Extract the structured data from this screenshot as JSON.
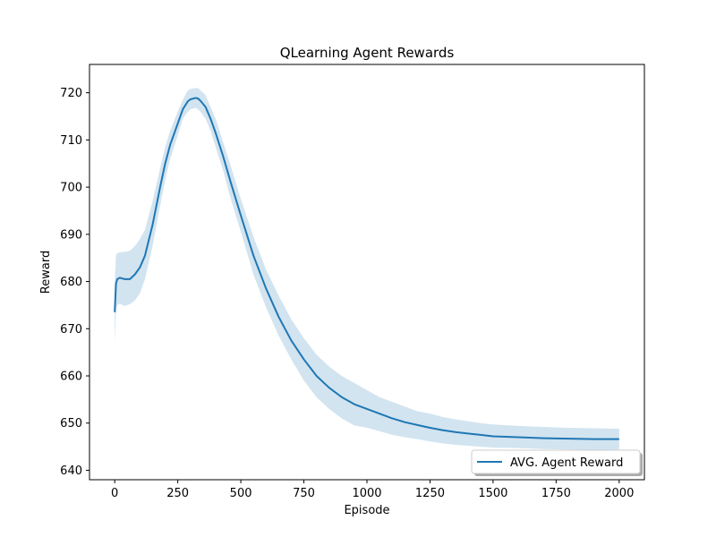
{
  "chart_data": {
    "type": "line",
    "title": "QLearning Agent Rewards",
    "xlabel": "Episode",
    "ylabel": "Reward",
    "xlim": [
      -100,
      2100
    ],
    "ylim": [
      638,
      726
    ],
    "xticks": [
      0,
      250,
      500,
      750,
      1000,
      1250,
      1500,
      1750,
      2000
    ],
    "yticks": [
      640,
      650,
      660,
      670,
      680,
      690,
      700,
      710,
      720
    ],
    "grid": false,
    "legend_position": "bottom-right",
    "colors": {
      "line": "#1f77b4",
      "band": "#1f77b4"
    },
    "series": [
      {
        "name": "AVG. Agent Reward",
        "x": [
          0,
          5,
          10,
          20,
          40,
          60,
          80,
          100,
          120,
          150,
          180,
          200,
          220,
          250,
          270,
          290,
          300,
          320,
          330,
          340,
          360,
          380,
          400,
          430,
          460,
          500,
          550,
          600,
          650,
          700,
          750,
          800,
          850,
          900,
          950,
          1000,
          1050,
          1100,
          1150,
          1200,
          1250,
          1300,
          1350,
          1400,
          1450,
          1500,
          1600,
          1700,
          1800,
          1900,
          2000
        ],
        "y": [
          673.5,
          679.5,
          680.5,
          680.8,
          680.5,
          680.5,
          681.5,
          683,
          685.5,
          692,
          700,
          705,
          709,
          713.5,
          716.5,
          718.2,
          718.6,
          718.9,
          718.8,
          718.3,
          717,
          714.5,
          711.5,
          706.5,
          701,
          694,
          685.5,
          678.5,
          672.5,
          667.5,
          663.5,
          660,
          657.5,
          655.5,
          654,
          653,
          652,
          651,
          650.2,
          649.6,
          649,
          648.5,
          648.1,
          647.8,
          647.5,
          647.2,
          647,
          646.8,
          646.7,
          646.6,
          646.6
        ],
        "band_upper": [
          680,
          685.5,
          686,
          686.2,
          686.3,
          686.5,
          687.5,
          689,
          691,
          697,
          704,
          708.5,
          712,
          716,
          718.5,
          720.5,
          720.8,
          721,
          721,
          720.5,
          719.5,
          717,
          714.5,
          709.5,
          704.5,
          697.5,
          689.5,
          682.5,
          677,
          672,
          668,
          664.5,
          662,
          660,
          658.5,
          657,
          655.5,
          654.5,
          653.5,
          652.5,
          652,
          651.3,
          650.8,
          650.4,
          650,
          649.7,
          649.4,
          649.2,
          649,
          648.9,
          648.8
        ],
        "band_lower": [
          667,
          673.5,
          675,
          675.3,
          674.8,
          675.2,
          676,
          677.5,
          680.5,
          687.5,
          696,
          701.5,
          706,
          711,
          714.5,
          716,
          716.5,
          716.8,
          716.5,
          716,
          714.5,
          712,
          708.5,
          703.5,
          697.5,
          690.5,
          681.5,
          674.5,
          668.5,
          663.5,
          659,
          655.5,
          653,
          651,
          649.5,
          649,
          648.3,
          647.5,
          647,
          646.6,
          646.1,
          645.7,
          645.4,
          645.2,
          645,
          644.8,
          644.7,
          644.5,
          644.4,
          644.3,
          644.4
        ]
      }
    ]
  }
}
